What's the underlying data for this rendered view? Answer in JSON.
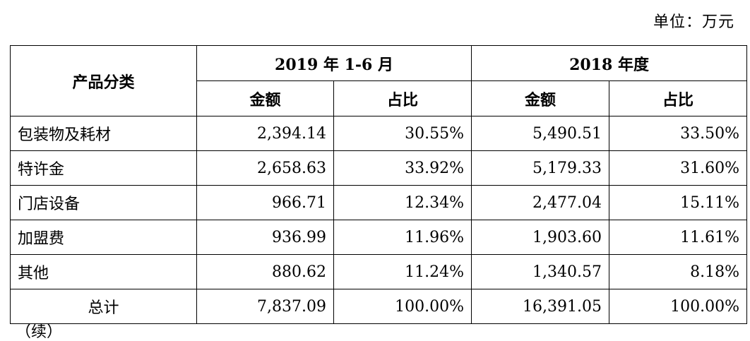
{
  "unit_label": "单位：万元",
  "table": {
    "header": {
      "category": "产品分类",
      "period1": "2019 年 1-6 月",
      "period2": "2018 年度",
      "amount": "金额",
      "ratio": "占比"
    },
    "rows": [
      {
        "category": "包装物及耗材",
        "p1_amount": "2,394.14",
        "p1_ratio": "30.55%",
        "p2_amount": "5,490.51",
        "p2_ratio": "33.50%"
      },
      {
        "category": "特许金",
        "p1_amount": "2,658.63",
        "p1_ratio": "33.92%",
        "p2_amount": "5,179.33",
        "p2_ratio": "31.60%"
      },
      {
        "category": "门店设备",
        "p1_amount": "966.71",
        "p1_ratio": "12.34%",
        "p2_amount": "2,477.04",
        "p2_ratio": "15.11%"
      },
      {
        "category": "加盟费",
        "p1_amount": "936.99",
        "p1_ratio": "11.96%",
        "p2_amount": "1,903.60",
        "p2_ratio": "11.61%"
      },
      {
        "category": "其他",
        "p1_amount": "880.62",
        "p1_ratio": "11.24%",
        "p2_amount": "1,340.57",
        "p2_ratio": "8.18%"
      }
    ],
    "total": {
      "category": "总计",
      "p1_amount": "7,837.09",
      "p1_ratio": "100.00%",
      "p2_amount": "16,391.05",
      "p2_ratio": "100.00%"
    }
  },
  "footer_fragment": "（续）"
}
